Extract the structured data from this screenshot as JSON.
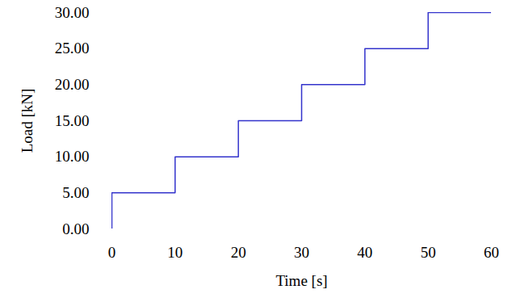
{
  "chart_data": {
    "type": "line",
    "x_label": "Time [s]",
    "y_label": "Load [kN]",
    "x": [
      0,
      0,
      10,
      20,
      30,
      40,
      50,
      60
    ],
    "values": [
      0,
      5,
      10,
      15,
      20,
      25,
      30,
      30
    ],
    "color": "#3333cc",
    "line_style": "step",
    "xlim": [
      0,
      60
    ],
    "xticks": [
      0,
      10,
      20,
      30,
      40,
      50,
      60
    ],
    "ylim": [
      0,
      30
    ],
    "yticks": [
      {
        "value": 0,
        "label": "0.00"
      },
      {
        "value": 5,
        "label": "5.00"
      },
      {
        "value": 10,
        "label": "10.00"
      },
      {
        "value": 15,
        "label": "15.00"
      },
      {
        "value": 20,
        "label": "20.00"
      },
      {
        "value": 25,
        "label": "25.00"
      },
      {
        "value": 30,
        "label": "30.00"
      }
    ],
    "grid": false
  }
}
